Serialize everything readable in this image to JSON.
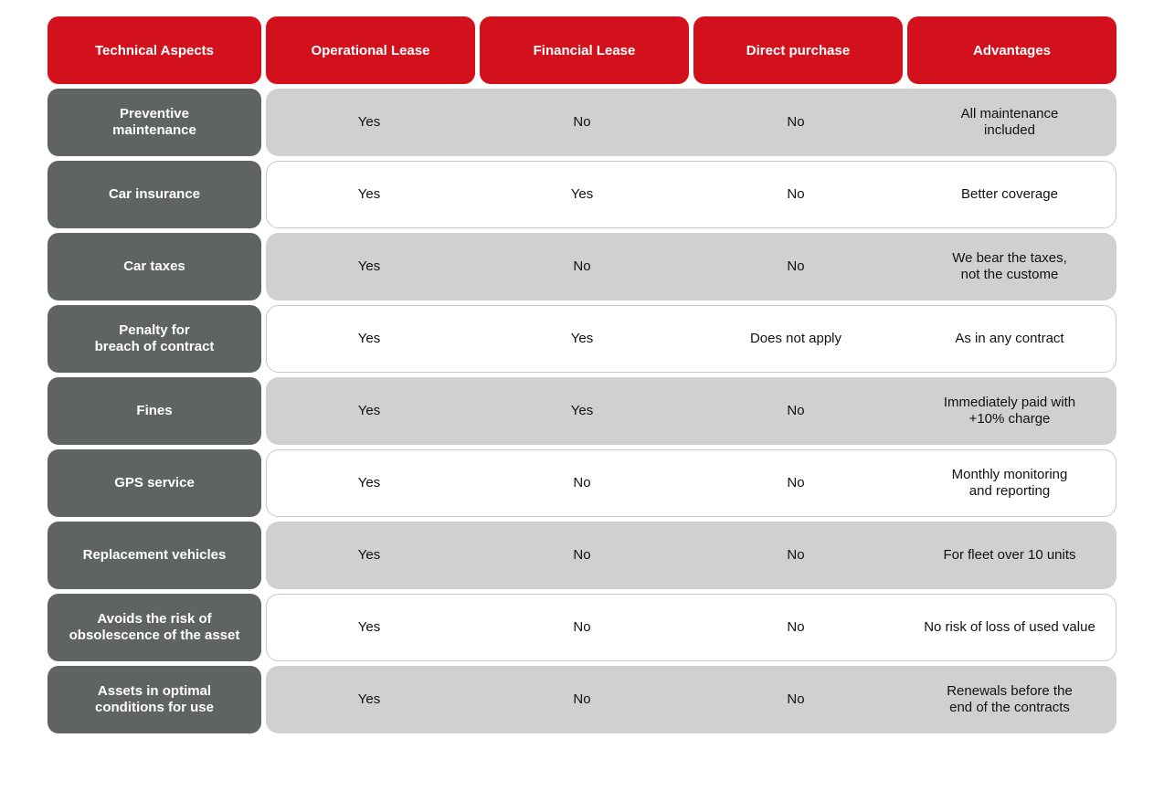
{
  "headers": {
    "aspects": "Technical Aspects",
    "operational": "Operational Lease",
    "financial": "Financial Lease",
    "direct": "Direct purchase",
    "advantages": "Advantages"
  },
  "rows": [
    {
      "aspect": "Preventive\nmaintenance",
      "operational": "Yes",
      "financial": "No",
      "direct": "No",
      "advantage": "All maintenance\nincluded"
    },
    {
      "aspect": "Car insurance",
      "operational": "Yes",
      "financial": "Yes",
      "direct": "No",
      "advantage": "Better coverage"
    },
    {
      "aspect": "Car taxes",
      "operational": "Yes",
      "financial": "No",
      "direct": "No",
      "advantage": "We bear the taxes,\nnot the custome"
    },
    {
      "aspect": "Penalty for\nbreach of contract",
      "operational": "Yes",
      "financial": "Yes",
      "direct": "Does not apply",
      "advantage": "As in any contract"
    },
    {
      "aspect": "Fines",
      "operational": "Yes",
      "financial": "Yes",
      "direct": "No",
      "advantage": "Immediately paid with\n+10% charge"
    },
    {
      "aspect": "GPS service",
      "operational": "Yes",
      "financial": "No",
      "direct": "No",
      "advantage": "Monthly monitoring\nand reporting"
    },
    {
      "aspect": "Replacement vehicles",
      "operational": "Yes",
      "financial": "No",
      "direct": "No",
      "advantage": "For fleet over 10 units"
    },
    {
      "aspect": "Avoids the risk of\nobsolescence of the asset",
      "operational": "Yes",
      "financial": "No",
      "direct": "No",
      "advantage": "No risk of loss of used value"
    },
    {
      "aspect": "Assets in optimal\nconditions for use",
      "operational": "Yes",
      "financial": "No",
      "direct": "No",
      "advantage": "Renewals before the\nend of the contracts"
    }
  ],
  "colors": {
    "header_red": "#d3111d",
    "aspect_gray": "#5f6462",
    "band_shaded": "#d0d0d0",
    "band_border": "#c8c8c8"
  }
}
